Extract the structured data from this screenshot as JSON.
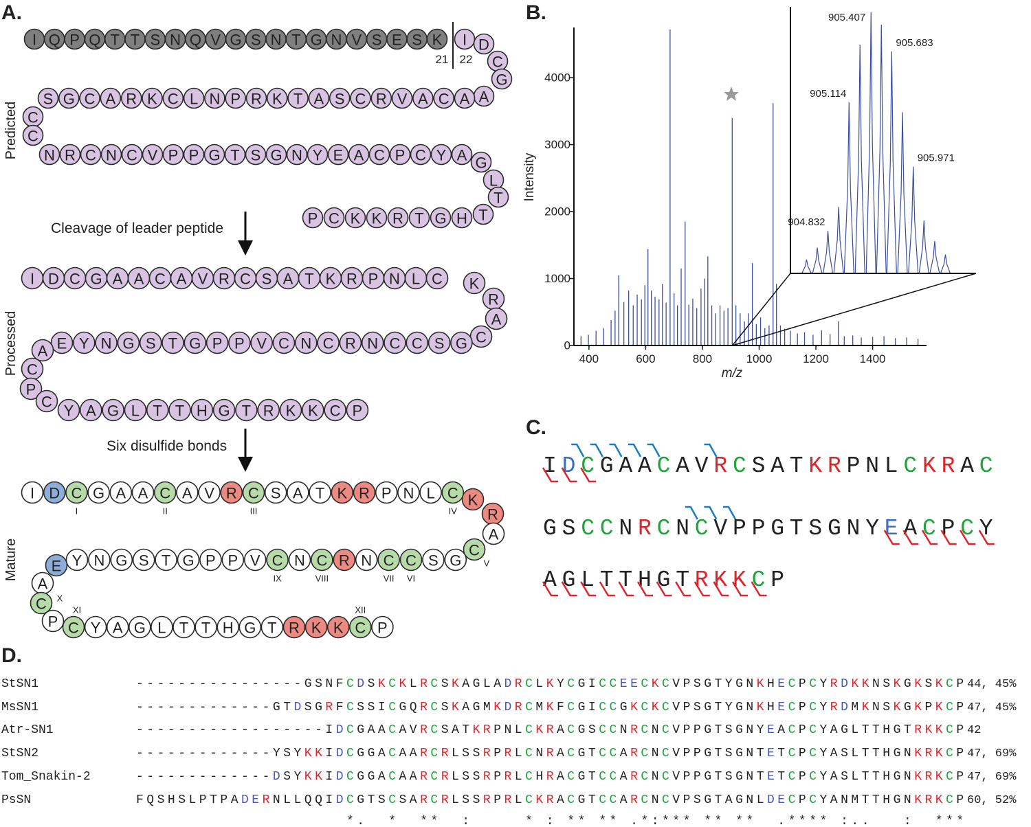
{
  "panel_a": {
    "label": "A.",
    "cleavage_site": [
      21,
      22
    ],
    "steps": [
      "Cleavage of leader peptide",
      "Six disulfide bonds"
    ],
    "predicted": {
      "title": "Predicted",
      "leader_color": "#7f7f7f",
      "color": "#d9c3e2",
      "segments": [
        {
          "leader": true,
          "residues": [
            "I",
            "Q",
            "P",
            "Q",
            "T",
            "T",
            "S",
            "N",
            "Q",
            "V",
            "G",
            "S",
            "N",
            "T",
            "G",
            "N",
            "V",
            "S",
            "E",
            "S",
            "K"
          ]
        },
        {
          "residues": [
            "I",
            "D",
            "C",
            "G",
            "A"
          ]
        },
        {
          "residues": [
            "S",
            "G",
            "C",
            "A",
            "R",
            "K",
            "C",
            "L",
            "N",
            "P",
            "R",
            "K",
            "T",
            "A",
            "S",
            "C",
            "R",
            "V",
            "A",
            "C",
            "A"
          ]
        },
        {
          "residues": [
            "C",
            "C"
          ]
        },
        {
          "residues": [
            "N",
            "R",
            "C",
            "N",
            "C",
            "V",
            "P",
            "P",
            "G",
            "T",
            "S",
            "G",
            "N",
            "Y",
            "E",
            "A",
            "C",
            "P",
            "C",
            "Y",
            "A"
          ]
        },
        {
          "residues": [
            "G",
            "L",
            "T",
            "T"
          ]
        },
        {
          "residues": [
            "P",
            "C",
            "K",
            "K",
            "R",
            "T",
            "G",
            "H"
          ]
        }
      ]
    },
    "processed": {
      "title": "Processed",
      "color": "#d9c3e2",
      "segments": [
        {
          "residues": [
            "I",
            "D",
            "C",
            "G",
            "A",
            "A",
            "C",
            "A",
            "V",
            "R",
            "C",
            "S",
            "A",
            "T",
            "K",
            "R",
            "P",
            "N",
            "L",
            "C"
          ]
        },
        {
          "residues": [
            "K",
            "R",
            "A",
            "C"
          ]
        },
        {
          "residues": [
            "E",
            "Y",
            "N",
            "G",
            "S",
            "T",
            "G",
            "P",
            "P",
            "V",
            "C",
            "N",
            "C",
            "R",
            "N",
            "C",
            "C",
            "S",
            "G"
          ]
        },
        {
          "residues": [
            "A",
            "C",
            "P",
            "C"
          ]
        },
        {
          "residues": [
            "Y",
            "A",
            "G",
            "L",
            "T",
            "T",
            "H",
            "G",
            "T",
            "R",
            "K",
            "K",
            "C",
            "P"
          ]
        }
      ]
    },
    "mature": {
      "title": "Mature",
      "default_fill": "#ffffff",
      "residue_fills": {
        "C": "#b7dba8",
        "K": "#ec8a82",
        "R": "#ec8a82",
        "D": "#8eadd9",
        "E": "#8eadd9"
      },
      "segments": [
        {
          "residues": [
            "I",
            "D",
            "C",
            "G",
            "A",
            "A",
            "C",
            "A",
            "V",
            "R",
            "C",
            "S",
            "A",
            "T",
            "K",
            "R",
            "P",
            "N",
            "L",
            "C"
          ]
        },
        {
          "residues": [
            "K",
            "R",
            "A",
            "C"
          ]
        },
        {
          "residues": [
            "Y",
            "N",
            "G",
            "S",
            "T",
            "G",
            "P",
            "P",
            "V",
            "C",
            "N",
            "C",
            "R",
            "N",
            "C",
            "C",
            "S",
            "G"
          ]
        },
        {
          "residues": [
            "E",
            "A",
            "C",
            "P"
          ]
        },
        {
          "residues": [
            "C",
            "Y",
            "A",
            "G",
            "L",
            "T",
            "T",
            "H",
            "G",
            "T",
            "R",
            "K",
            "K",
            "C",
            "P"
          ]
        }
      ],
      "cysteine_labels": [
        "I",
        "II",
        "III",
        "IV",
        "V",
        "VI",
        "VII",
        "VIII",
        "IX",
        "X",
        "XI",
        "XII"
      ]
    }
  },
  "chart_data": {
    "type": "spectrum",
    "panel_label": "B.",
    "x_label": "m/z",
    "y_label": "Intensity",
    "color": "#3a4ea3",
    "xlim": [
      347,
      1590
    ],
    "ylim": [
      0,
      4750
    ],
    "xticks": [
      400,
      600,
      800,
      1000,
      1200,
      1400
    ],
    "yticks": [
      0,
      1000,
      2000,
      3000,
      4000
    ],
    "x": [
      372,
      398,
      425,
      452,
      478,
      492,
      505,
      523,
      540,
      556,
      570,
      585,
      597,
      608,
      620,
      633,
      647,
      659,
      672,
      686,
      700,
      712,
      725,
      739,
      752,
      766,
      780,
      795,
      808,
      819,
      833,
      847,
      862,
      876,
      890,
      905,
      918,
      933,
      948,
      962,
      976,
      990,
      1005,
      1020,
      1035,
      1049,
      1061,
      1075,
      1090,
      1110,
      1135,
      1160,
      1190,
      1220,
      1250,
      1279,
      1300,
      1330,
      1360,
      1400,
      1440,
      1480,
      1520,
      1560
    ],
    "values": [
      140,
      160,
      220,
      260,
      380,
      520,
      1050,
      650,
      820,
      600,
      760,
      690,
      900,
      1440,
      820,
      730,
      690,
      920,
      640,
      4720,
      780,
      600,
      1150,
      1850,
      610,
      700,
      560,
      850,
      1000,
      1330,
      600,
      480,
      600,
      520,
      560,
      3400,
      600,
      480,
      360,
      480,
      1230,
      320,
      420,
      260,
      300,
      3620,
      920,
      300,
      250,
      220,
      180,
      200,
      160,
      230,
      170,
      360,
      140,
      150,
      120,
      130,
      140,
      110,
      120,
      100
    ],
    "inset": {
      "xlim": [
        904.35,
        906.79
      ],
      "x": [
        904.547,
        904.69,
        904.832,
        904.975,
        905.114,
        905.26,
        905.407,
        905.545,
        905.683,
        905.827,
        905.971,
        906.114,
        906.257,
        906.4
      ],
      "values": [
        180,
        335,
        555,
        865,
        2230,
        2980,
        3400,
        3240,
        2890,
        2100,
        1390,
        690,
        420,
        245
      ],
      "peak_labels": [
        904.832,
        905.114,
        905.407,
        905.683,
        905.971
      ]
    }
  },
  "panel_c": {
    "label": "C.",
    "residue_colors": {
      "C": "#1fa33a",
      "K": "#e0242a",
      "R": "#e0242a",
      "D": "#3a6fc4",
      "E": "#3a6fc4"
    },
    "bracket_colors": {
      "above": "#1a7cc4",
      "below": "#e0242a"
    },
    "rows": [
      {
        "sequence": "IDCGAACAVRCSATKRPNLCKRAC",
        "fragments_above": [
          1,
          2,
          3,
          4,
          5,
          8
        ],
        "fragments_below": [
          0,
          1,
          2
        ]
      },
      {
        "sequence": "GSCCNRCNCVPPGTSGNYEACPCY",
        "fragments_above": [
          7,
          8,
          9
        ],
        "fragments_below": [
          18,
          19,
          20,
          21,
          22,
          23
        ]
      },
      {
        "sequence": "AGLTTHGTRKKCP",
        "fragments_above": [],
        "fragments_below": [
          0,
          1,
          2,
          3,
          4,
          5,
          6,
          7,
          8,
          9,
          10,
          11
        ]
      }
    ]
  },
  "panel_d": {
    "label": "D.",
    "residue_colors": {
      "C": "#1fa33a",
      "K": "#e0242a",
      "R": "#e0242a",
      "D": "#4a56b8",
      "E": "#4a56b8"
    },
    "rows": [
      {
        "name": "StSN1",
        "sequence": "----------------GSNFCDSKCKLRCSKAGLADRCLKYCGICCEECKCVPSGTYGNKHECPCYRDKKNSKGKSKCP",
        "end": "44, 45%"
      },
      {
        "name": "MsSN1",
        "sequence": "-------------GTDSGRFCSSICGQRCSKAGMKDRCMKFCGICCGKCKCVPSGTYGNKHECPCYRDMKNSKGKPKCP",
        "end": "47, 45%"
      },
      {
        "name": "Atr-SN1",
        "sequence": "------------------IDCGAACAVRCSATKRPNLCKRACGSCCNRCNCVPPGTSGNYEACPCYAGLTTHGTRKKCP",
        "end": "42"
      },
      {
        "name": "StSN2",
        "sequence": "-------------YSYKKIDCGGACAARCRLSSRPRLCNRACGTCCARCNCVPPGTSGNTETCPCYASLTTHGNKRKCP",
        "end": "47, 69%"
      },
      {
        "name": "Tom_Snakin-2",
        "sequence": "-------------DSYKKIDCGGACAARCRLSSRPRLCHRACGTCCARCNCVPPGTSGNTETCPCYASLTTHGNKRKCP",
        "end": "47, 69%"
      },
      {
        "name": "PsSN",
        "sequence": "FQSHSLPTPADERNLLQQIDCGTSCSARCRLSSRPRLCKRACGTCCARCNCVPSGTAGNLDECPCYANMTTHGNKRKCP",
        "end": "60, 52%"
      }
    ],
    "consensus": "                    *.  *  **  :     * : ** ** .*:*** ** **  .**** :..   :  ***"
  }
}
